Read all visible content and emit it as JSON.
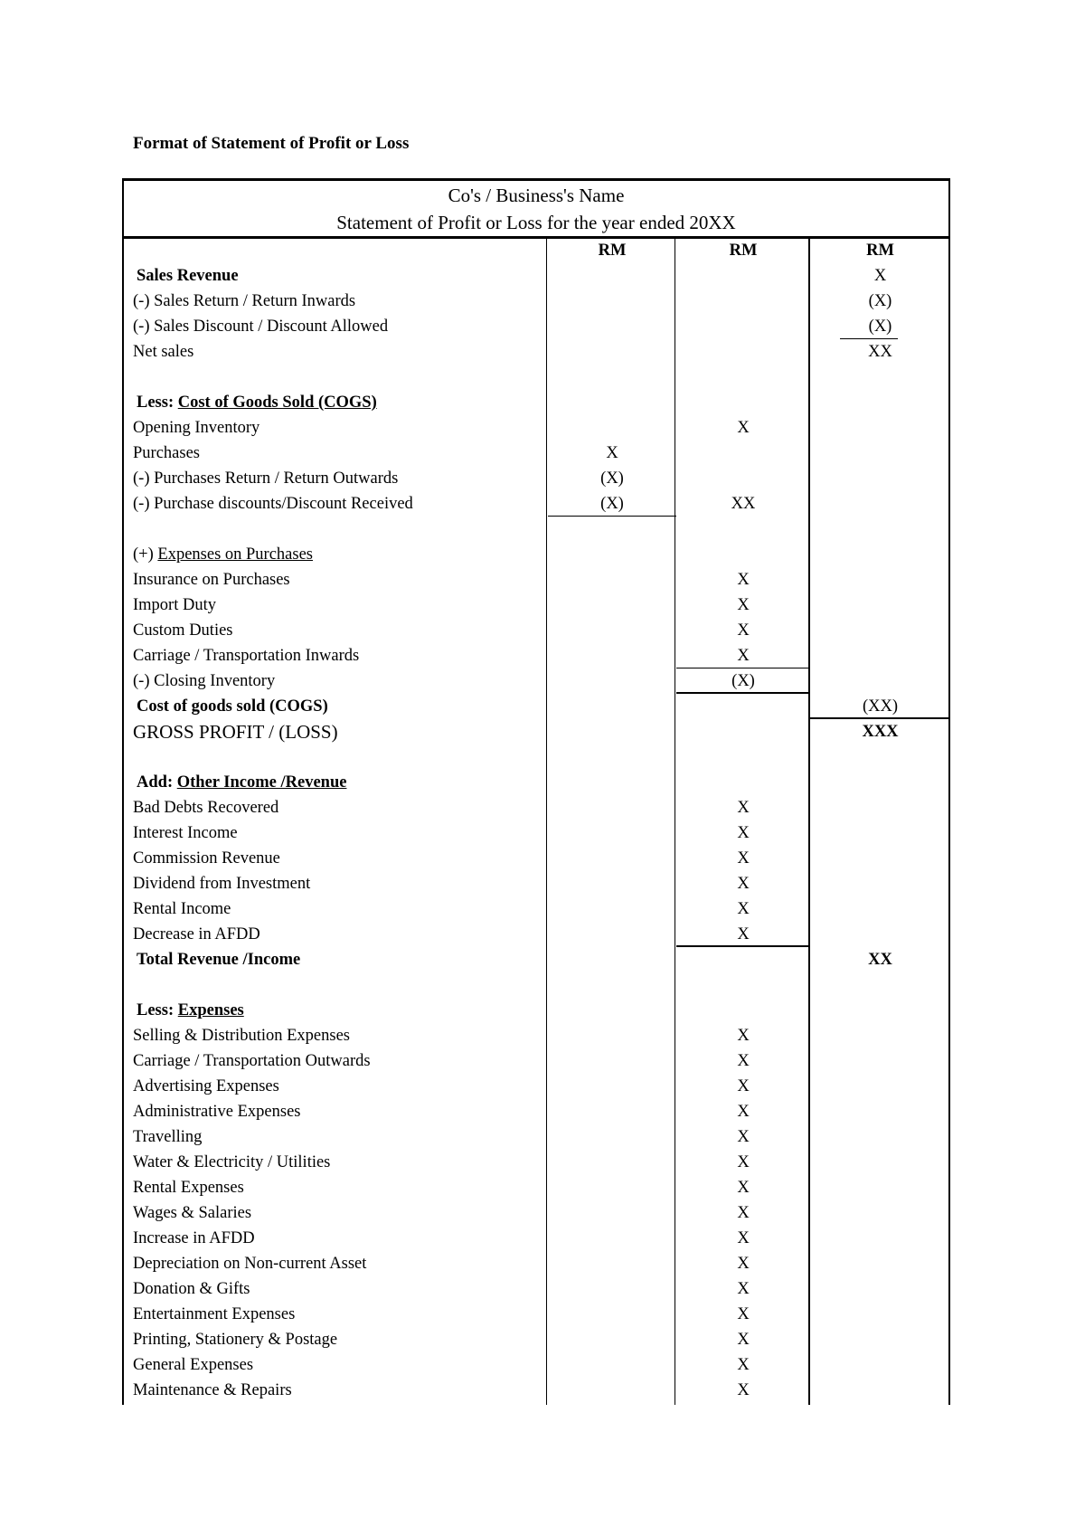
{
  "doc_title": "Format of Statement of Profit or Loss",
  "header": {
    "company": "Co's / Business's Name",
    "statement": "Statement of Profit or Loss for the year ended 20XX"
  },
  "rows": [
    {
      "label": "",
      "c1": "RM",
      "c2": "RM",
      "c3": "RM",
      "bold": true
    },
    {
      "label": "Sales Revenue",
      "bold": true,
      "c3": "X"
    },
    {
      "label": "(-) Sales Return / Return Inwards",
      "c3": "(X)"
    },
    {
      "label": "(-) Sales Discount / Discount Allowed",
      "c3": "(X)"
    },
    {
      "label": "Net sales",
      "c3": "XX"
    },
    {
      "label": ""
    },
    {
      "prefix": "Less:",
      "underlined": "Cost of Goods Sold (COGS)",
      "bold": true
    },
    {
      "label": "Opening Inventory",
      "c2": "X"
    },
    {
      "label": "Purchases",
      "c1": "X"
    },
    {
      "label": "(-) Purchases Return / Return Outwards",
      "c1": "(X)"
    },
    {
      "label": "(-) Purchase discounts/Discount Received",
      "c1": "(X)",
      "c2": "XX"
    },
    {
      "label": ""
    },
    {
      "prefix": "(+)",
      "underlined": "Expenses on Purchases"
    },
    {
      "label": "Insurance on Purchases",
      "c2": "X"
    },
    {
      "label": "Import Duty",
      "c2": "X"
    },
    {
      "label": "Custom Duties",
      "c2": "X"
    },
    {
      "label": "Carriage / Transportation Inwards",
      "c2": "X"
    },
    {
      "label": "(-) Closing Inventory",
      "c2": "(X)"
    },
    {
      "label": "Cost of goods sold (COGS)",
      "bold": true,
      "c3": "(XX)"
    },
    {
      "label": "GROSS PROFIT / (LOSS)",
      "big": true,
      "c3": "XXX",
      "c3bold": true
    },
    {
      "label": ""
    },
    {
      "prefix": "Add:",
      "underlined": "Other Income /Revenue ",
      "bold": true
    },
    {
      "label": "Bad Debts Recovered",
      "c2": "X"
    },
    {
      "label": "Interest Income",
      "c2": "X"
    },
    {
      "label": "Commission Revenue",
      "c2": "X"
    },
    {
      "label": "Dividend from Investment",
      "c2": "X"
    },
    {
      "label": "Rental Income",
      "c2": "X"
    },
    {
      "label": "Decrease in AFDD",
      "c2": "X"
    },
    {
      "label": "Total Revenue /Income",
      "bold": true,
      "c3": "XX",
      "c3bold": true
    },
    {
      "label": ""
    },
    {
      "prefix": "Less:",
      "underlined": "Expenses",
      "bold": true
    },
    {
      "label": "Selling & Distribution Expenses",
      "c2": "X"
    },
    {
      "label": "Carriage / Transportation Outwards",
      "c2": "X"
    },
    {
      "label": "Advertising Expenses",
      "c2": "X"
    },
    {
      "label": "Administrative Expenses",
      "c2": "X"
    },
    {
      "label": "Travelling",
      "c2": "X"
    },
    {
      "label": "Water & Electricity / Utilities",
      "c2": "X"
    },
    {
      "label": "Rental Expenses",
      "c2": "X"
    },
    {
      "label": "Wages & Salaries",
      "c2": "X"
    },
    {
      "label": "Increase in AFDD",
      "c2": "X"
    },
    {
      "label": "Depreciation on Non-current Asset",
      "c2": "X"
    },
    {
      "label": "Donation & Gifts",
      "c2": "X"
    },
    {
      "label": "Entertainment Expenses",
      "c2": "X"
    },
    {
      "label": "Printing, Stationery & Postage",
      "c2": "X"
    },
    {
      "label": "General Expenses",
      "c2": "X"
    },
    {
      "label": "Maintenance & Repairs",
      "c2": "X"
    }
  ]
}
